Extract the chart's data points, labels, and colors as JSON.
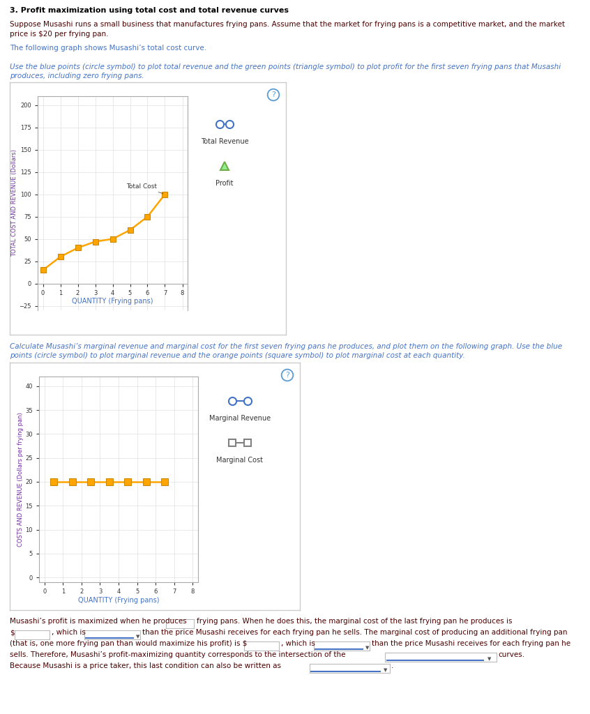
{
  "title": "3. Profit maximization using total cost and total revenue curves",
  "para1_line1": "Suppose Musashi runs a small business that manufactures frying pans. Assume that the market for frying pans is a competitive market, and the market",
  "para1_line2": "price is $20 per frying pan.",
  "para2": "The following graph shows Musashi’s total cost curve.",
  "para3_line1": "Use the blue points (circle symbol) to plot total revenue and the green points (triangle symbol) to plot profit for the first seven frying pans that Musashi",
  "para3_line2": "produces, including zero frying pans.",
  "para4_line1": "Calculate Musashi’s marginal revenue and marginal cost for the first seven frying pans he produces, and plot them on the following graph. Use the blue",
  "para4_line2": "points (circle symbol) to plot marginal revenue and the orange points (square symbol) to plot marginal cost at each quantity.",
  "tc_x": [
    0,
    1,
    2,
    3,
    4,
    5,
    6,
    7
  ],
  "tc_y": [
    15,
    30,
    40,
    47,
    50,
    60,
    75,
    100
  ],
  "tc_color": "#FFA500",
  "tc_label": "Total Cost",
  "chart1_ylabel": "TOTAL COST AND REVENUE (Dollars)",
  "chart1_xlabel": "QUANTITY (Frying pans)",
  "chart1_ylim": [
    -30,
    210
  ],
  "chart1_xlim": [
    -0.3,
    8.3
  ],
  "chart1_yticks": [
    -25,
    0,
    25,
    50,
    75,
    100,
    125,
    150,
    175,
    200
  ],
  "chart1_xticks": [
    0,
    1,
    2,
    3,
    4,
    5,
    6,
    7,
    8
  ],
  "legend1_blue_label": "Total Revenue",
  "legend1_green_label": "Profit",
  "mc_x": [
    0.5,
    1.5,
    2.5,
    3.5,
    4.5,
    5.5,
    6.5
  ],
  "mc_y": [
    20,
    20,
    20,
    20,
    20,
    20,
    20
  ],
  "mc_color": "#FFA500",
  "chart2_ylabel": "COSTS AND REVENUE (Dollars per frying pan)",
  "chart2_xlabel": "QUANTITY (Frying pans)",
  "chart2_ylim": [
    -1,
    42
  ],
  "chart2_xlim": [
    -0.3,
    8.3
  ],
  "chart2_yticks": [
    0,
    5,
    10,
    15,
    20,
    25,
    30,
    35,
    40
  ],
  "chart2_xticks": [
    0,
    1,
    2,
    3,
    4,
    5,
    6,
    7,
    8
  ],
  "legend2_blue_label": "Marginal Revenue",
  "legend2_gray_label": "Marginal Cost",
  "question_mark_color": "#5B9BD5",
  "text_color_title": "#000000",
  "text_color_body": "#000000",
  "text_color_italic": "#4472C4",
  "text_color_para2": "#4472C4",
  "bg_color": "#FFFFFF",
  "chart_bg": "#FFFFFF",
  "chart_border": "#CCCCCC",
  "grid_color": "#E0E0E0",
  "axis_color": "#AAAAAA",
  "blue_marker_color": "#4472C4",
  "green_marker_color": "#70AD47",
  "orange_mc_color": "#FFA500",
  "gray_marker_color": "#808080"
}
